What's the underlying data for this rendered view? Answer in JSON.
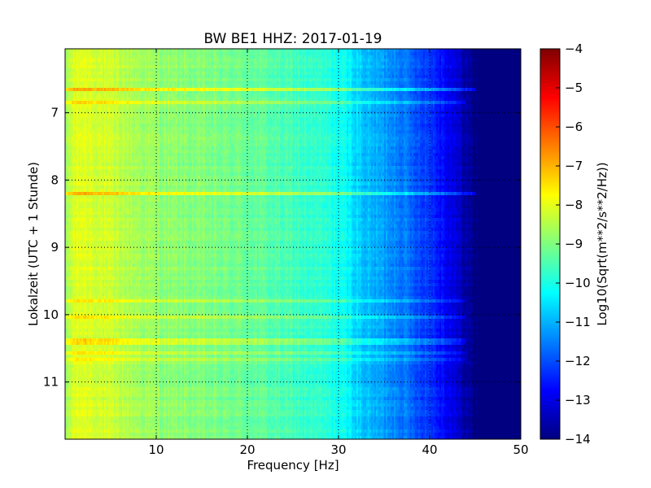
{
  "chart_data": {
    "type": "heatmap",
    "title": "BW BE1 HHZ: 2017-01-19",
    "xlabel": "Frequency [Hz]",
    "ylabel": "Lokalzeit (UTC + 1 Stunde)",
    "xlim": [
      0,
      50
    ],
    "ylim": [
      11.85,
      6.05
    ],
    "y_inverted": true,
    "xticks": [
      10,
      20,
      30,
      40,
      50
    ],
    "xtick_labels": [
      "10",
      "20",
      "30",
      "40",
      "50"
    ],
    "yticks": [
      7,
      8,
      9,
      10,
      11
    ],
    "ytick_labels": [
      "7",
      "8",
      "9",
      "10",
      "11"
    ],
    "grid": true,
    "colormap": "jet",
    "colorbar": {
      "label": "Log10(Sqrt(m**2/s**2/Hz))",
      "min": -14,
      "max": -4,
      "ticks": [
        -4,
        -5,
        -6,
        -7,
        -8,
        -9,
        -10,
        -11,
        -12,
        -13,
        -14
      ],
      "tick_labels": [
        "−4",
        "−5",
        "−6",
        "−7",
        "−8",
        "−9",
        "−10",
        "−11",
        "−12",
        "−13",
        "−14"
      ]
    },
    "spectrum_profile": {
      "frequency_hz": [
        0,
        0.5,
        1,
        2,
        5,
        8,
        10,
        15,
        20,
        25,
        29,
        31,
        32,
        33,
        35,
        37,
        38,
        40,
        42,
        43,
        44,
        45,
        46,
        50
      ],
      "log_amplitude": [
        -8.9,
        -8.4,
        -8.1,
        -8.0,
        -8.3,
        -8.6,
        -8.8,
        -9.0,
        -9.2,
        -9.6,
        -9.9,
        -10.3,
        -10.6,
        -10.9,
        -11.2,
        -11.5,
        -11.8,
        -12.2,
        -12.8,
        -13.2,
        -13.6,
        -14.0,
        -14.0,
        -14.0
      ]
    },
    "bright_time_bands": [
      {
        "time": 6.67,
        "strength": 1.2,
        "end_hz": 45
      },
      {
        "time": 6.85,
        "strength": 0.8,
        "end_hz": 44
      },
      {
        "time": 8.2,
        "strength": 1.0,
        "end_hz": 45
      },
      {
        "time": 9.78,
        "strength": 0.7,
        "end_hz": 44
      },
      {
        "time": 10.03,
        "strength": 0.6,
        "end_hz": 44
      },
      {
        "time": 10.4,
        "strength": 0.7,
        "end_hz": 44
      },
      {
        "time": 10.58,
        "strength": 0.6,
        "end_hz": 44
      },
      {
        "time": 10.67,
        "strength": 0.6,
        "end_hz": 44
      }
    ]
  }
}
